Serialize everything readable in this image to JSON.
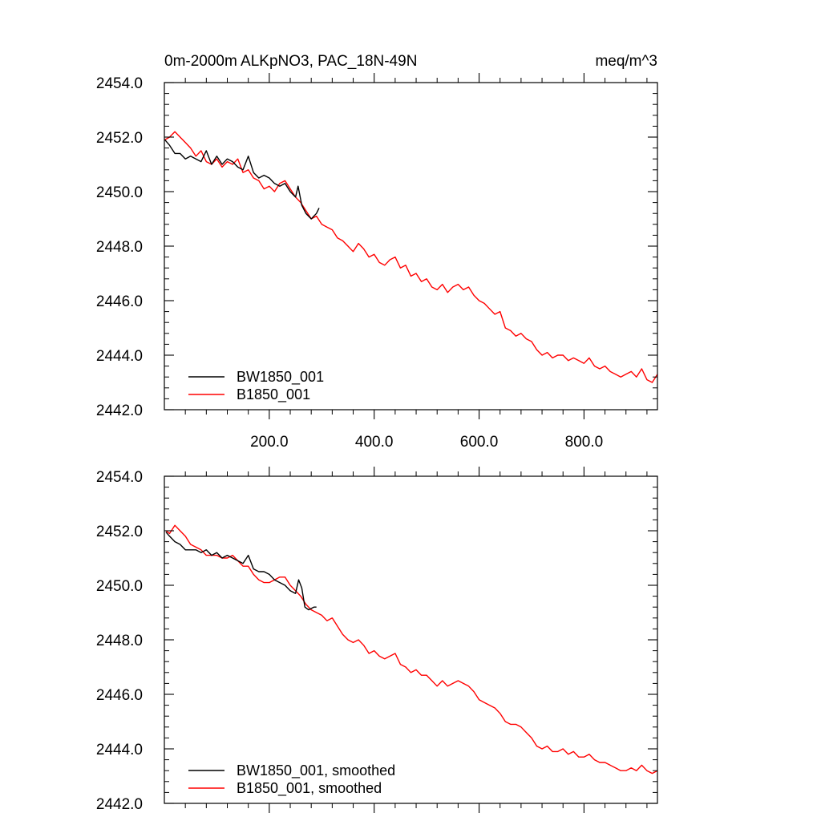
{
  "chart_data": [
    {
      "type": "line",
      "title": "0m-2000m ALKpNO3, PAC_18N-49N",
      "units": "meq/m^3",
      "xlabel": "",
      "ylabel": "",
      "xlim": [
        0,
        940
      ],
      "ylim": [
        2442.0,
        2454.0
      ],
      "xticks": [
        200,
        400,
        600,
        800
      ],
      "xtick_labels": [
        "200.0",
        "400.0",
        "600.0",
        "800.0"
      ],
      "yticks": [
        2442,
        2444,
        2446,
        2448,
        2450,
        2452,
        2454
      ],
      "ytick_labels": [
        "2442.0",
        "2444.0",
        "2446.0",
        "2448.0",
        "2450.0",
        "2452.0",
        "2454.0"
      ],
      "legend_position": "bottom-left",
      "series": [
        {
          "name": "BW1850_001",
          "color": "#000000",
          "x": [
            1,
            10,
            20,
            30,
            40,
            50,
            60,
            70,
            80,
            90,
            100,
            110,
            120,
            130,
            140,
            150,
            160,
            170,
            180,
            190,
            200,
            210,
            220,
            230,
            240,
            250,
            255,
            262,
            270,
            280,
            290,
            295
          ],
          "values": [
            2451.9,
            2451.7,
            2451.4,
            2451.4,
            2451.2,
            2451.3,
            2451.2,
            2451.1,
            2451.5,
            2451.0,
            2451.3,
            2451.0,
            2451.2,
            2451.1,
            2450.9,
            2450.8,
            2451.3,
            2450.7,
            2450.5,
            2450.6,
            2450.5,
            2450.3,
            2450.2,
            2450.3,
            2450.0,
            2449.8,
            2450.2,
            2449.5,
            2449.2,
            2449.0,
            2449.2,
            2449.4
          ]
        },
        {
          "name": "B1850_001",
          "color": "#ff0000",
          "x": [
            1,
            10,
            20,
            30,
            40,
            50,
            60,
            70,
            80,
            90,
            100,
            110,
            120,
            130,
            140,
            150,
            160,
            170,
            180,
            190,
            200,
            210,
            220,
            230,
            240,
            250,
            260,
            270,
            280,
            290,
            300,
            310,
            320,
            330,
            340,
            350,
            360,
            370,
            380,
            390,
            400,
            410,
            420,
            430,
            440,
            450,
            460,
            470,
            480,
            490,
            500,
            510,
            520,
            530,
            540,
            550,
            560,
            570,
            580,
            590,
            600,
            610,
            620,
            630,
            640,
            650,
            660,
            670,
            680,
            690,
            700,
            710,
            720,
            730,
            740,
            750,
            760,
            770,
            780,
            790,
            800,
            810,
            820,
            830,
            840,
            850,
            860,
            870,
            880,
            890,
            900,
            910,
            920,
            930,
            940
          ],
          "values": [
            2451.9,
            2452.0,
            2452.2,
            2452.0,
            2451.8,
            2451.6,
            2451.3,
            2451.5,
            2451.1,
            2451.0,
            2451.2,
            2450.9,
            2451.1,
            2451.0,
            2451.2,
            2450.7,
            2450.8,
            2450.5,
            2450.4,
            2450.1,
            2450.2,
            2450.0,
            2450.3,
            2450.4,
            2450.1,
            2449.8,
            2449.6,
            2449.3,
            2449.0,
            2449.1,
            2448.8,
            2448.7,
            2448.6,
            2448.3,
            2448.2,
            2448.0,
            2447.8,
            2448.1,
            2447.9,
            2447.6,
            2447.7,
            2447.4,
            2447.3,
            2447.5,
            2447.6,
            2447.2,
            2447.3,
            2446.9,
            2447.0,
            2446.7,
            2446.8,
            2446.5,
            2446.4,
            2446.6,
            2446.3,
            2446.5,
            2446.6,
            2446.4,
            2446.5,
            2446.2,
            2446.0,
            2445.9,
            2445.7,
            2445.5,
            2445.6,
            2445.0,
            2444.9,
            2444.7,
            2444.8,
            2444.6,
            2444.5,
            2444.2,
            2444.0,
            2444.1,
            2443.9,
            2444.0,
            2444.0,
            2443.8,
            2443.9,
            2443.8,
            2443.7,
            2443.9,
            2443.6,
            2443.5,
            2443.6,
            2443.4,
            2443.3,
            2443.2,
            2443.3,
            2443.4,
            2443.2,
            2443.5,
            2443.1,
            2443.0,
            2443.3
          ]
        }
      ]
    },
    {
      "type": "line",
      "title": "",
      "xlabel": "",
      "ylabel": "",
      "xlim": [
        0,
        940
      ],
      "ylim": [
        2442.0,
        2454.0
      ],
      "xticks": [
        200,
        400,
        600,
        800
      ],
      "yticks": [
        2442,
        2444,
        2446,
        2448,
        2450,
        2452,
        2454
      ],
      "ytick_labels": [
        "2442.0",
        "2444.0",
        "2446.0",
        "2448.0",
        "2450.0",
        "2452.0",
        "2454.0"
      ],
      "legend_position": "bottom-left",
      "series": [
        {
          "name": "BW1850_001, smoothed",
          "color": "#000000",
          "x": [
            3,
            10,
            20,
            30,
            40,
            50,
            60,
            70,
            80,
            90,
            100,
            110,
            120,
            130,
            140,
            150,
            160,
            170,
            180,
            190,
            200,
            210,
            220,
            230,
            240,
            250,
            256,
            262,
            268,
            275,
            285,
            290
          ],
          "values": [
            2451.95,
            2451.8,
            2451.6,
            2451.5,
            2451.3,
            2451.3,
            2451.3,
            2451.2,
            2451.3,
            2451.1,
            2451.2,
            2451.0,
            2451.1,
            2451.0,
            2450.9,
            2450.8,
            2451.1,
            2450.6,
            2450.5,
            2450.5,
            2450.4,
            2450.2,
            2450.1,
            2450.0,
            2449.8,
            2449.7,
            2450.2,
            2449.9,
            2449.2,
            2449.1,
            2449.2,
            2449.2
          ]
        },
        {
          "name": "B1850_001, smoothed",
          "color": "#ff0000",
          "x": [
            3,
            10,
            20,
            30,
            40,
            50,
            60,
            70,
            80,
            90,
            100,
            110,
            120,
            130,
            140,
            150,
            160,
            170,
            180,
            190,
            200,
            210,
            220,
            230,
            240,
            250,
            260,
            270,
            280,
            290,
            300,
            310,
            320,
            330,
            340,
            350,
            360,
            370,
            380,
            390,
            400,
            410,
            420,
            430,
            440,
            450,
            460,
            470,
            480,
            490,
            500,
            510,
            520,
            530,
            540,
            550,
            560,
            570,
            580,
            590,
            600,
            610,
            620,
            630,
            640,
            650,
            660,
            670,
            680,
            690,
            700,
            710,
            720,
            730,
            740,
            750,
            760,
            770,
            780,
            790,
            800,
            810,
            820,
            830,
            840,
            850,
            860,
            870,
            880,
            890,
            900,
            910,
            920,
            930,
            940
          ],
          "values": [
            2452.0,
            2451.9,
            2452.2,
            2452.0,
            2451.8,
            2451.5,
            2451.4,
            2451.3,
            2451.1,
            2451.1,
            2451.1,
            2451.0,
            2451.0,
            2451.1,
            2450.9,
            2450.7,
            2450.7,
            2450.4,
            2450.2,
            2450.1,
            2450.1,
            2450.2,
            2450.3,
            2450.3,
            2450.0,
            2449.8,
            2449.6,
            2449.3,
            2449.1,
            2449.0,
            2448.9,
            2448.7,
            2448.8,
            2448.5,
            2448.2,
            2448.0,
            2447.9,
            2448.0,
            2447.8,
            2447.5,
            2447.6,
            2447.4,
            2447.3,
            2447.4,
            2447.5,
            2447.1,
            2447.0,
            2446.8,
            2446.9,
            2446.7,
            2446.7,
            2446.5,
            2446.3,
            2446.5,
            2446.3,
            2446.4,
            2446.5,
            2446.4,
            2446.3,
            2446.1,
            2445.8,
            2445.7,
            2445.6,
            2445.5,
            2445.3,
            2445.0,
            2444.9,
            2444.9,
            2444.8,
            2444.6,
            2444.4,
            2444.1,
            2444.0,
            2444.1,
            2443.9,
            2443.9,
            2444.0,
            2443.8,
            2443.9,
            2443.7,
            2443.7,
            2443.8,
            2443.6,
            2443.5,
            2443.5,
            2443.4,
            2443.3,
            2443.2,
            2443.2,
            2443.3,
            2443.2,
            2443.4,
            2443.2,
            2443.1,
            2443.2
          ]
        }
      ]
    }
  ]
}
